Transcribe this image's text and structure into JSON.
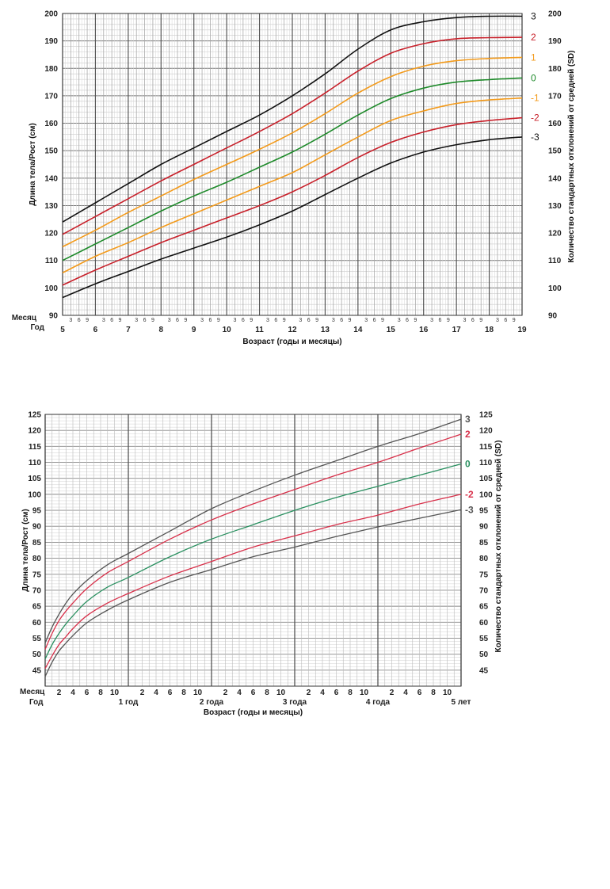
{
  "chart_data": [
    {
      "type": "line",
      "ylabel": "Длина тела/Рост (см)",
      "ylabel_right": "Количество стандартных отклонений от средней (SD)",
      "xlabel": "Возраст (годы и месяцы)",
      "row_label_month": "Месяц",
      "row_label_year": "Год",
      "xlim": [
        5,
        19
      ],
      "ylim": [
        90,
        200
      ],
      "y_ticks": [
        90,
        100,
        110,
        120,
        130,
        140,
        150,
        160,
        170,
        180,
        190,
        200
      ],
      "year_ticks": [
        "5",
        "6",
        "7",
        "8",
        "9",
        "10",
        "11",
        "12",
        "13",
        "14",
        "15",
        "16",
        "17",
        "18",
        "19"
      ],
      "month_ticks": [
        "3",
        "6",
        "9"
      ],
      "grid": true,
      "series": [
        {
          "name": "3",
          "color": "#111111",
          "x": [
            5,
            6,
            7,
            8,
            9,
            10,
            11,
            12,
            13,
            14,
            15,
            16,
            17,
            18,
            19
          ],
          "values": [
            124,
            131,
            138,
            145,
            151,
            157,
            163,
            170,
            178,
            187,
            194,
            197,
            198.5,
            199,
            199
          ]
        },
        {
          "name": "2",
          "color": "#c8202a",
          "x": [
            5,
            6,
            7,
            8,
            9,
            10,
            11,
            12,
            13,
            14,
            15,
            16,
            17,
            18,
            19
          ],
          "values": [
            119.5,
            126,
            132.5,
            139,
            145,
            151,
            157,
            163.5,
            171,
            179,
            185.5,
            189,
            190.8,
            191.2,
            191.3
          ]
        },
        {
          "name": "1",
          "color": "#f39a1a",
          "x": [
            5,
            6,
            7,
            8,
            9,
            10,
            11,
            12,
            13,
            14,
            15,
            16,
            17,
            18,
            19
          ],
          "values": [
            115,
            121,
            127.5,
            133.5,
            139.5,
            145,
            150.5,
            156.5,
            163.5,
            171,
            177,
            180.8,
            182.8,
            183.6,
            184
          ]
        },
        {
          "name": "0",
          "color": "#1e8a2a",
          "x": [
            5,
            6,
            7,
            8,
            9,
            10,
            11,
            12,
            13,
            14,
            15,
            16,
            17,
            18,
            19
          ],
          "values": [
            110,
            116,
            122,
            128,
            133.5,
            138.5,
            144,
            149.5,
            156,
            163,
            169,
            172.8,
            175,
            175.9,
            176.5
          ]
        },
        {
          "name": "-1",
          "color": "#f39a1a",
          "x": [
            5,
            6,
            7,
            8,
            9,
            10,
            11,
            12,
            13,
            14,
            15,
            16,
            17,
            18,
            19
          ],
          "values": [
            105.5,
            111.5,
            116.5,
            122,
            127,
            132,
            137,
            142,
            148.5,
            155,
            161,
            164.5,
            167.2,
            168.5,
            169.2
          ]
        },
        {
          "name": "-2",
          "color": "#c8202a",
          "x": [
            5,
            6,
            7,
            8,
            9,
            10,
            11,
            12,
            13,
            14,
            15,
            16,
            17,
            18,
            19
          ],
          "values": [
            101,
            106.5,
            111.5,
            116.5,
            121,
            125.5,
            130,
            135,
            141,
            147.5,
            153,
            156.8,
            159.5,
            161,
            162
          ]
        },
        {
          "name": "-3",
          "color": "#111111",
          "x": [
            5,
            6,
            7,
            8,
            9,
            10,
            11,
            12,
            13,
            14,
            15,
            16,
            17,
            18,
            19
          ],
          "values": [
            96.5,
            101.5,
            106,
            110.5,
            114.5,
            118.5,
            123,
            128,
            134,
            140,
            145.5,
            149.5,
            152.2,
            154,
            155
          ]
        }
      ]
    },
    {
      "type": "line",
      "ylabel": "Длина тела/Рост (см)",
      "ylabel_right": "Количество стандартных отклонений от средней (SD)",
      "xlabel": "Возраст (годы и месяцы)",
      "row_label_month": "Месяц",
      "row_label_year": "Год",
      "xlim": [
        0,
        60
      ],
      "ylim": [
        40,
        125
      ],
      "y_ticks": [
        45,
        50,
        55,
        60,
        65,
        70,
        75,
        80,
        85,
        90,
        95,
        100,
        105,
        110,
        115,
        120,
        125
      ],
      "year_ticks": [
        "1 год",
        "2 года",
        "3 года",
        "4 года",
        "5 лет"
      ],
      "month_ticks": [
        "2",
        "4",
        "6",
        "8",
        "10"
      ],
      "grid": true,
      "series": [
        {
          "name": "3",
          "color": "#555555",
          "x": [
            0,
            1,
            2,
            3,
            4,
            6,
            9,
            12,
            18,
            24,
            30,
            36,
            42,
            48,
            54,
            60
          ],
          "values": [
            53.5,
            58.5,
            62.5,
            66,
            68.8,
            73,
            78,
            81.5,
            88.5,
            95.5,
            101,
            106,
            110.5,
            115,
            119,
            123.5
          ]
        },
        {
          "name": "2",
          "color": "#d8304a",
          "x": [
            0,
            1,
            2,
            3,
            4,
            6,
            9,
            12,
            18,
            24,
            30,
            36,
            42,
            48,
            54,
            60
          ],
          "values": [
            51.5,
            56.5,
            60.5,
            63.5,
            66,
            70.5,
            75.5,
            79,
            86,
            92,
            97,
            101.5,
            106,
            110,
            114.5,
            118.8
          ]
        },
        {
          "name": "0",
          "color": "#2a9060",
          "x": [
            0,
            1,
            2,
            3,
            4,
            6,
            9,
            12,
            18,
            24,
            30,
            36,
            42,
            48,
            54,
            60
          ],
          "values": [
            48.5,
            53,
            56.5,
            59.5,
            62,
            66.5,
            71,
            74,
            80.5,
            86,
            90.5,
            95,
            99,
            102.5,
            106,
            109.5
          ]
        },
        {
          "name": "-2",
          "color": "#d8304a",
          "x": [
            0,
            1,
            2,
            3,
            4,
            6,
            9,
            12,
            18,
            24,
            30,
            36,
            42,
            48,
            54,
            60
          ],
          "values": [
            45.5,
            49.5,
            53,
            55.5,
            58,
            62,
            66,
            69,
            74.5,
            79,
            83.5,
            87,
            90.5,
            93.5,
            97,
            100
          ]
        },
        {
          "name": "-3",
          "color": "#555555",
          "x": [
            0,
            1,
            2,
            3,
            4,
            6,
            9,
            12,
            18,
            24,
            30,
            36,
            42,
            48,
            54,
            60
          ],
          "values": [
            43,
            47.5,
            51,
            53.5,
            55.8,
            59.8,
            63.8,
            67,
            72.5,
            76.5,
            80.5,
            83.5,
            86.8,
            89.8,
            92.5,
            95.2
          ]
        }
      ]
    }
  ]
}
